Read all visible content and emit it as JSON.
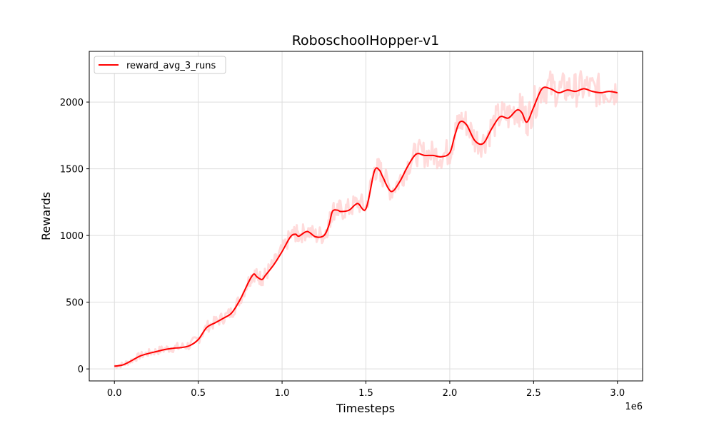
{
  "chart_data": {
    "type": "line",
    "title": "RoboschoolHopper-v1",
    "xlabel": "Timesteps",
    "ylabel": "Rewards",
    "x_offset_text": "1e6",
    "xlim": [
      -0.15,
      3.15
    ],
    "ylim": [
      -90,
      2380
    ],
    "x_scale_factor": 1000000,
    "xticks": [
      0.0,
      0.5,
      1.0,
      1.5,
      2.0,
      2.5,
      3.0
    ],
    "xtick_labels": [
      "0.0",
      "0.5",
      "1.0",
      "1.5",
      "2.0",
      "2.5",
      "3.0"
    ],
    "yticks": [
      0,
      500,
      1000,
      1500,
      2000
    ],
    "ytick_labels": [
      "0",
      "500",
      "1000",
      "1500",
      "2000"
    ],
    "grid": true,
    "legend": {
      "position": "top-left",
      "entries": [
        "reward_avg_3_runs"
      ]
    },
    "colors": {
      "line": "#ff0000",
      "raw": "#ffcccc",
      "grid": "#dddddd"
    },
    "series": [
      {
        "name": "reward_avg_3_runs",
        "x": [
          0.0,
          0.05,
          0.1,
          0.15,
          0.2,
          0.25,
          0.3,
          0.35,
          0.4,
          0.45,
          0.5,
          0.55,
          0.6,
          0.65,
          0.7,
          0.75,
          0.8,
          0.83,
          0.85,
          0.88,
          0.9,
          0.95,
          1.0,
          1.05,
          1.08,
          1.1,
          1.15,
          1.2,
          1.25,
          1.28,
          1.3,
          1.33,
          1.35,
          1.4,
          1.45,
          1.5,
          1.55,
          1.58,
          1.6,
          1.65,
          1.7,
          1.75,
          1.8,
          1.85,
          1.9,
          1.95,
          2.0,
          2.03,
          2.06,
          2.1,
          2.15,
          2.2,
          2.25,
          2.3,
          2.35,
          2.4,
          2.43,
          2.46,
          2.5,
          2.55,
          2.6,
          2.65,
          2.7,
          2.75,
          2.8,
          2.85,
          2.9,
          2.95,
          3.0
        ],
        "y": [
          20,
          30,
          60,
          95,
          115,
          130,
          145,
          155,
          160,
          175,
          220,
          310,
          345,
          380,
          420,
          520,
          650,
          710,
          690,
          670,
          700,
          780,
          880,
          990,
          1010,
          995,
          1030,
          990,
          1000,
          1080,
          1180,
          1190,
          1180,
          1190,
          1240,
          1200,
          1480,
          1490,
          1440,
          1330,
          1400,
          1520,
          1610,
          1600,
          1600,
          1590,
          1620,
          1750,
          1850,
          1830,
          1710,
          1690,
          1800,
          1890,
          1880,
          1940,
          1920,
          1850,
          1960,
          2100,
          2100,
          2070,
          2090,
          2080,
          2100,
          2080,
          2070,
          2080,
          2070
        ]
      }
    ]
  }
}
